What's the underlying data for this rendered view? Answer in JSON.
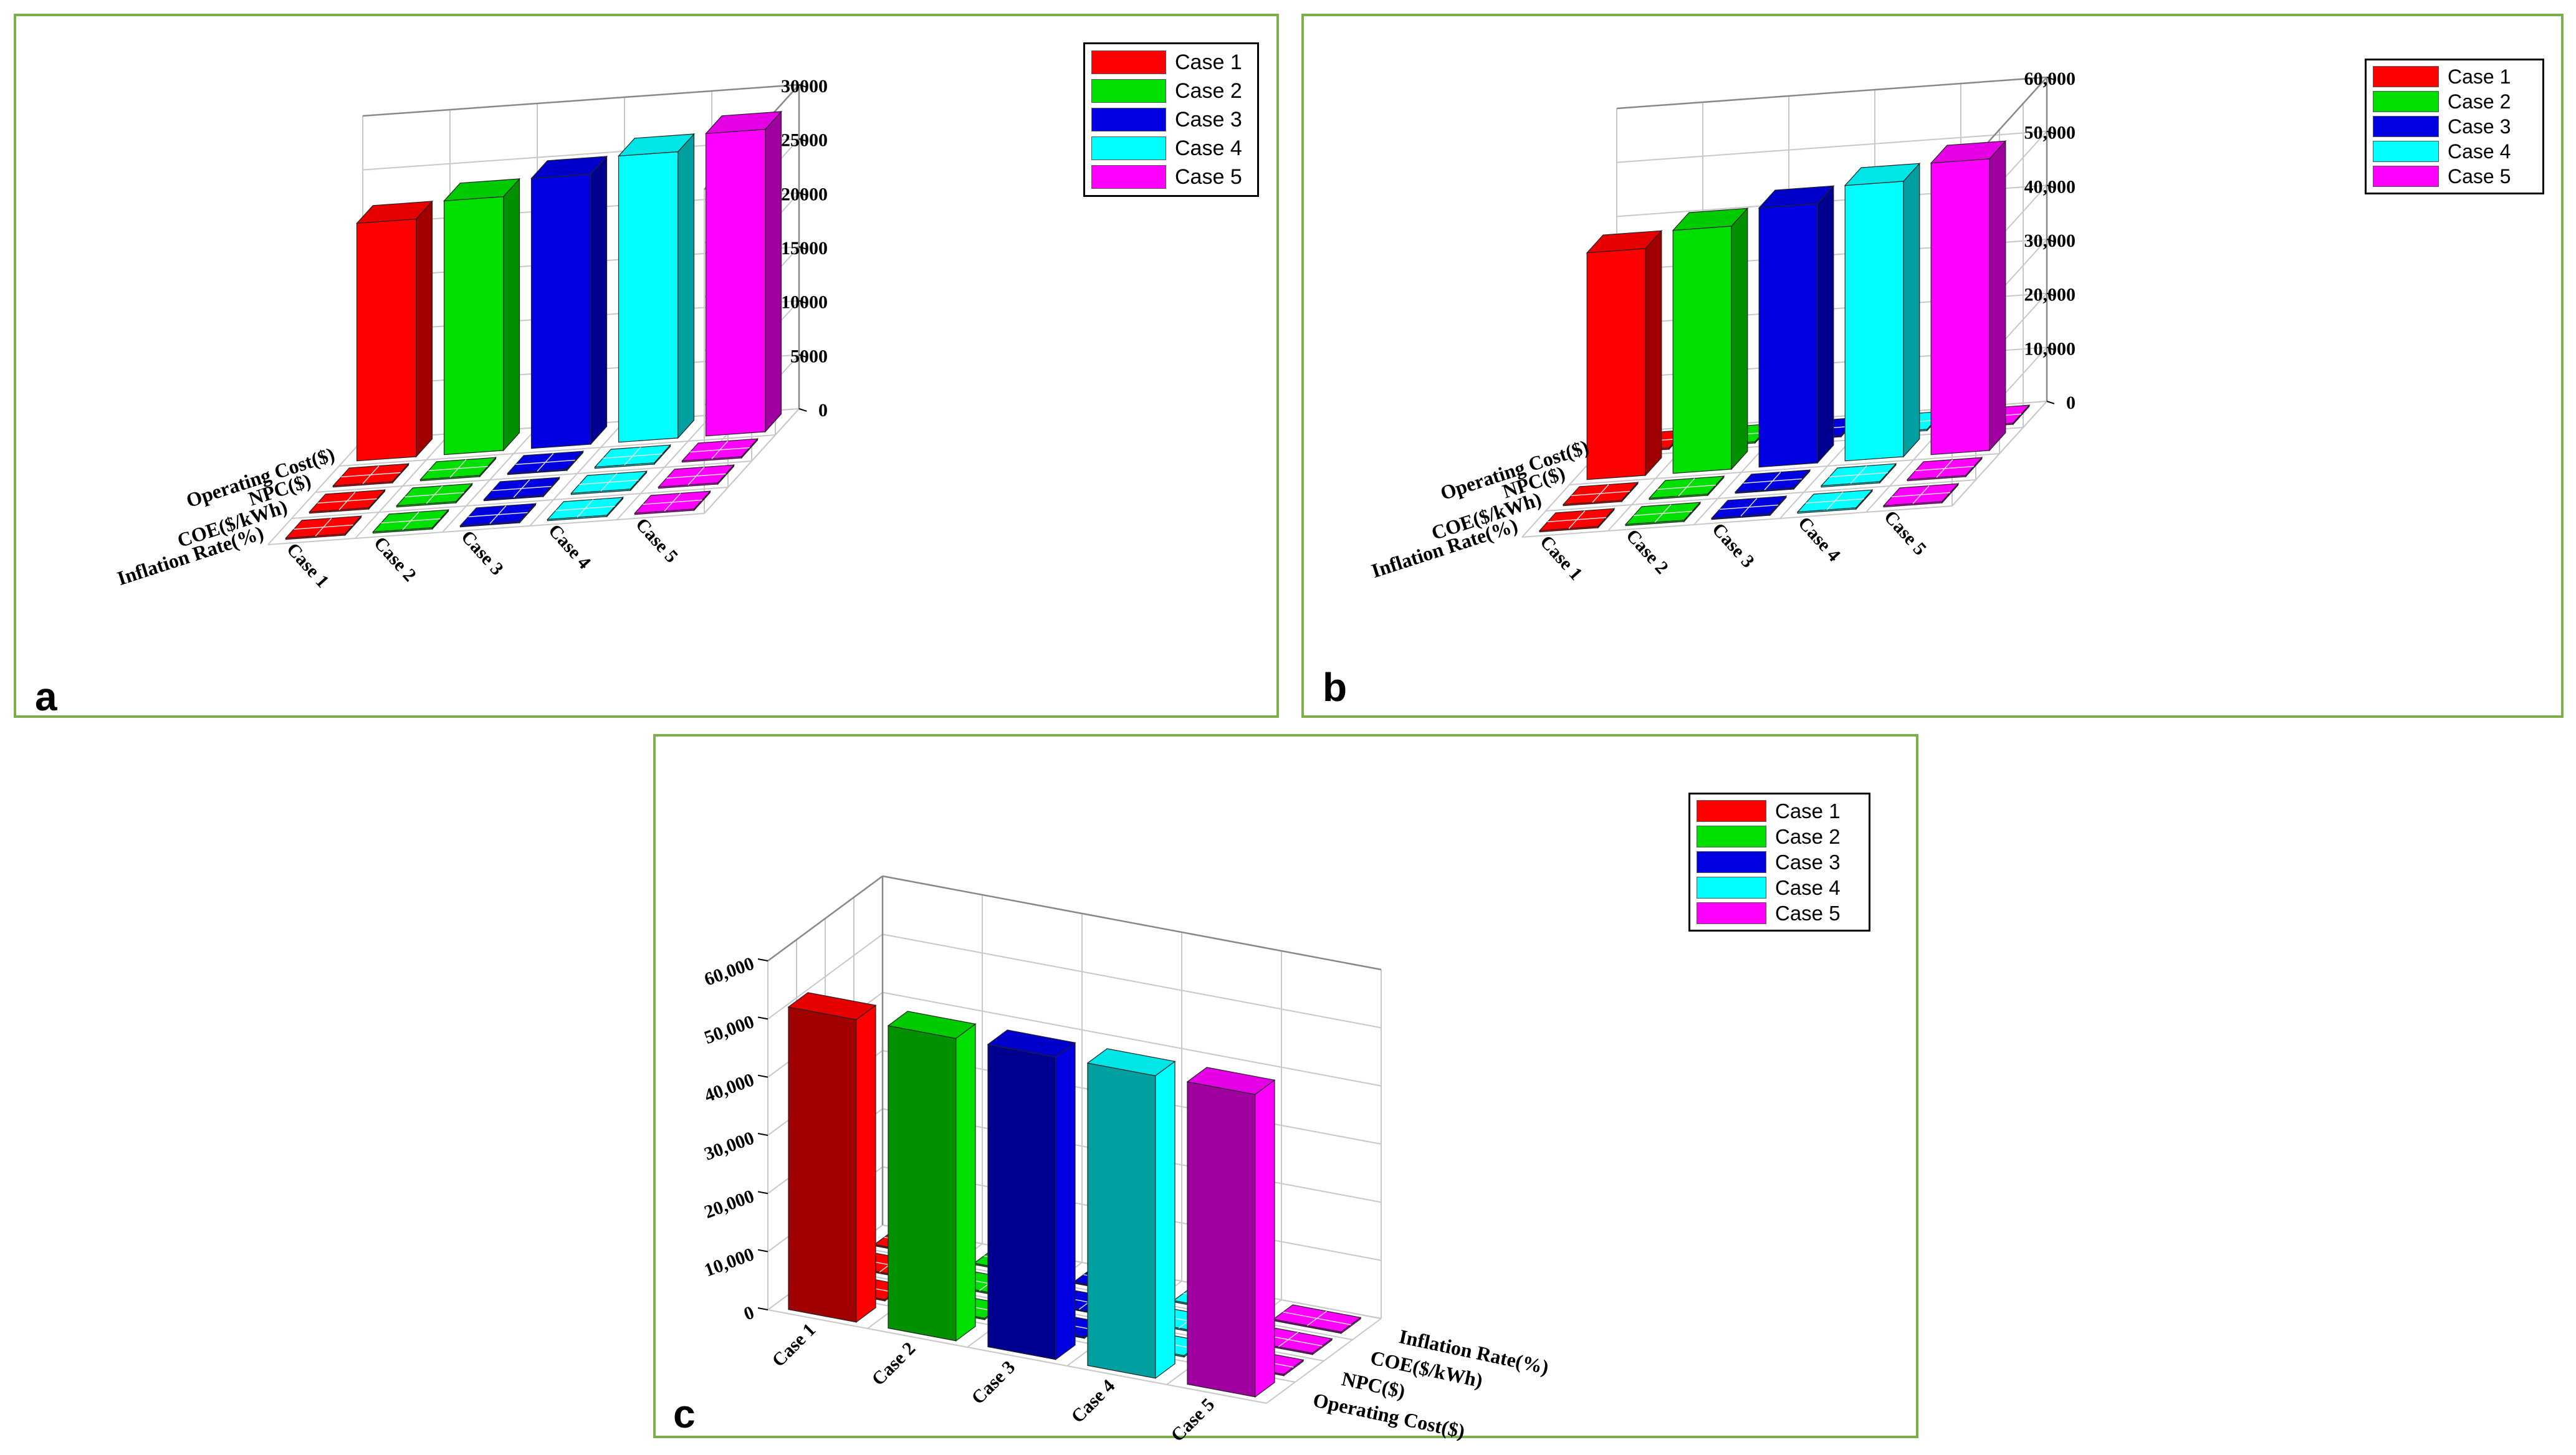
{
  "colors": {
    "frame": "#7cae4a",
    "series": [
      "#ff0000",
      "#00e000",
      "#0000e0",
      "#00ffff",
      "#ff00ff"
    ],
    "series_dark": [
      "#a00000",
      "#009000",
      "#000090",
      "#00a0a0",
      "#a000a0"
    ]
  },
  "panel_labels": [
    "a",
    "b",
    "c"
  ],
  "legend": [
    "Case 1",
    "Case 2",
    "Case 3",
    "Case 4",
    "Case 5"
  ],
  "chart_data": [
    {
      "type": "bar3d",
      "panel": "a",
      "cases": [
        "Case 1",
        "Case 2",
        "Case 3",
        "Case 4",
        "Case 5"
      ],
      "metrics": [
        "Operating Cost($)",
        "NPC($)",
        "COE($/kWh)",
        "Inflation Rate(%)"
      ],
      "series": [
        {
          "name": "Case 1",
          "values": [
            22000,
            0.2,
            0.2,
            0.2
          ]
        },
        {
          "name": "Case 2",
          "values": [
            23500,
            0.2,
            0.2,
            0.2
          ]
        },
        {
          "name": "Case 3",
          "values": [
            25000,
            0.2,
            0.2,
            0.2
          ]
        },
        {
          "name": "Case 4",
          "values": [
            26500,
            0.2,
            0.2,
            0.2
          ]
        },
        {
          "name": "Case 5",
          "values": [
            28000,
            0.2,
            0.2,
            0.2
          ]
        }
      ],
      "zticks": [
        "0",
        "5000",
        "10000",
        "15000",
        "20000",
        "25000",
        "30000"
      ],
      "zlim": [
        0,
        30000
      ]
    },
    {
      "type": "bar3d",
      "panel": "b",
      "cases": [
        "Case 1",
        "Case 2",
        "Case 3",
        "Case 4",
        "Case 5"
      ],
      "metrics": [
        "Operating Cost($)",
        "NPC($)",
        "COE($/kWh)",
        "Inflation Rate(%)"
      ],
      "series": [
        {
          "name": "Case 1",
          "values": [
            0,
            42000,
            0.2,
            0.2
          ]
        },
        {
          "name": "Case 2",
          "values": [
            0,
            45000,
            0.2,
            0.2
          ]
        },
        {
          "name": "Case 3",
          "values": [
            0,
            48000,
            0.2,
            0.2
          ]
        },
        {
          "name": "Case 4",
          "values": [
            0,
            51000,
            0.2,
            0.2
          ]
        },
        {
          "name": "Case 5",
          "values": [
            0,
            54000,
            0.2,
            0.2
          ]
        }
      ],
      "zticks": [
        "0",
        "10,000",
        "20,000",
        "30,000",
        "40,000",
        "50,000",
        "60,000"
      ],
      "zlim": [
        0,
        60000
      ]
    },
    {
      "type": "bar3d",
      "panel": "c",
      "cases": [
        "Case 1",
        "Case 2",
        "Case 3",
        "Case 4",
        "Case 5"
      ],
      "metrics": [
        "Operating Cost($)",
        "NPC($)",
        "COE($/kWh)",
        "Inflation Rate(%)"
      ],
      "series": [
        {
          "name": "Case 1",
          "values": [
            52000,
            0.2,
            0.2,
            0.2
          ]
        },
        {
          "name": "Case 2",
          "values": [
            52000,
            0.2,
            0.2,
            0.2
          ]
        },
        {
          "name": "Case 3",
          "values": [
            52000,
            0.2,
            0.2,
            0.2
          ]
        },
        {
          "name": "Case 4",
          "values": [
            52000,
            0.2,
            0.2,
            0.2
          ]
        },
        {
          "name": "Case 5",
          "values": [
            52000,
            0.2,
            0.2,
            0.2
          ]
        }
      ],
      "zticks": [
        "0",
        "10,000",
        "20,000",
        "30,000",
        "40,000",
        "50,000",
        "60,000"
      ],
      "zlim": [
        0,
        60000
      ]
    }
  ]
}
